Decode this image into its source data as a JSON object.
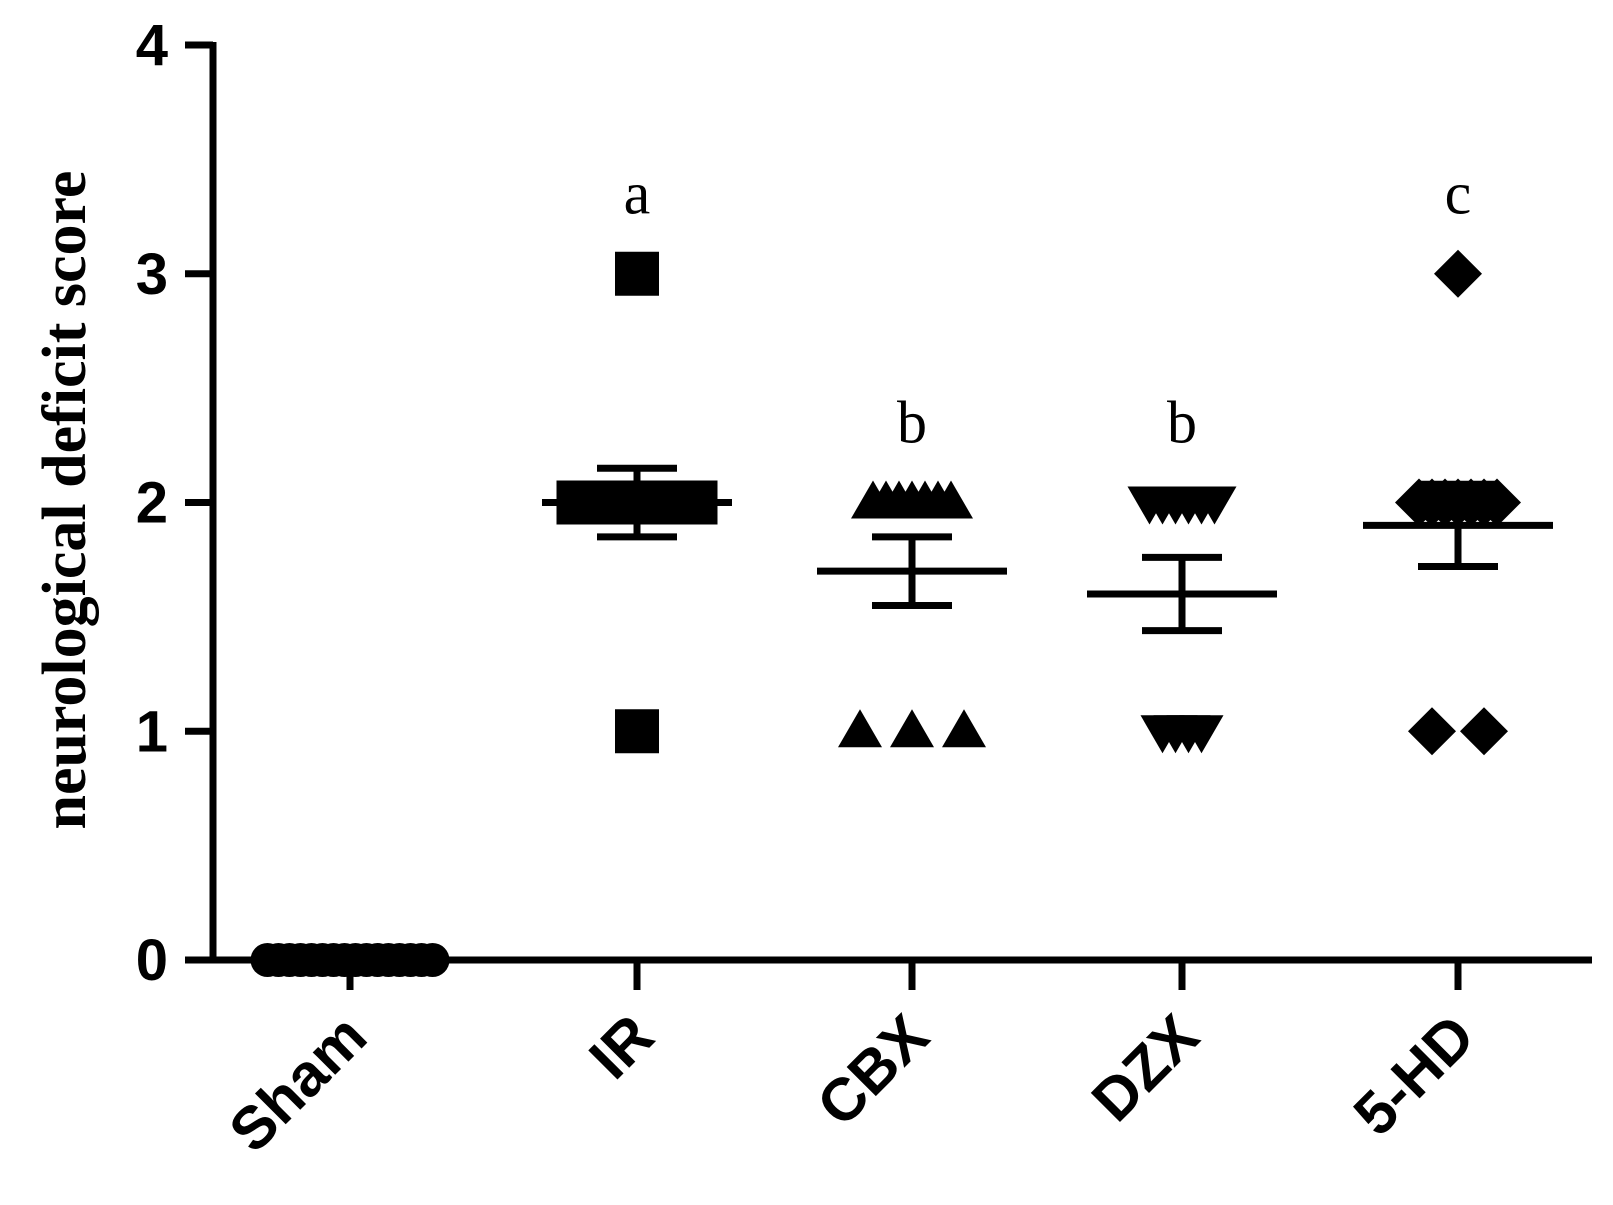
{
  "chart_data": {
    "type": "scatter",
    "title": "",
    "xlabel": "",
    "ylabel": "neurological deficit score",
    "ylim": [
      0,
      4
    ],
    "yticks": [
      "0",
      "1",
      "2",
      "3",
      "4"
    ],
    "categories": [
      "Sham",
      "IR",
      "CBX",
      "DZX",
      "5-HD"
    ],
    "grid": false,
    "legend": "none",
    "series": [
      {
        "category": "Sham",
        "marker": "circle",
        "color": "#000000",
        "points": [
          0,
          0,
          0,
          0,
          0,
          0,
          0,
          0,
          0,
          0,
          0,
          0,
          0,
          0,
          0,
          0
        ],
        "mean": 0,
        "sem": 0,
        "annotation": ""
      },
      {
        "category": "IR",
        "marker": "square",
        "color": "#000000",
        "points": [
          3,
          2,
          2,
          2,
          2,
          2,
          2,
          2,
          2,
          2,
          2,
          2,
          2,
          2,
          2,
          1
        ],
        "mean": 2.0,
        "sem": 0.15,
        "annotation": "a"
      },
      {
        "category": "CBX",
        "marker": "triangle-up",
        "color": "#000000",
        "points": [
          2,
          2,
          2,
          2,
          2,
          2,
          2,
          1,
          1,
          1
        ],
        "mean": 1.7,
        "sem": 0.15,
        "annotation": "b"
      },
      {
        "category": "DZX",
        "marker": "triangle-down",
        "color": "#000000",
        "points": [
          2,
          2,
          2,
          2,
          2,
          2,
          1,
          1,
          1,
          1
        ],
        "mean": 1.6,
        "sem": 0.16,
        "annotation": "b"
      },
      {
        "category": "5-HD",
        "marker": "diamond",
        "color": "#000000",
        "points": [
          3,
          2,
          2,
          2,
          2,
          2,
          2,
          2,
          1,
          1
        ],
        "mean": 1.9,
        "sem": 0.18,
        "annotation": "c"
      }
    ]
  }
}
